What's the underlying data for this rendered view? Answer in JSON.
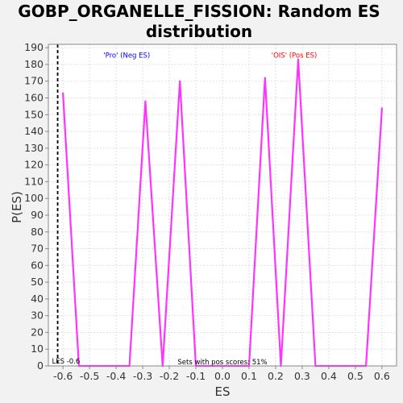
{
  "chart_data": {
    "type": "line",
    "title_lines": [
      "GOBP_ORGANELLE_FISSION: Random ES",
      "distribution"
    ],
    "xlabel": "ES",
    "ylabel": "P(ES)",
    "xlim": [
      -0.655,
      0.655
    ],
    "ylim": [
      0,
      192
    ],
    "x_ticks": [
      -0.6,
      -0.5,
      -0.4,
      -0.3,
      -0.2,
      -0.1,
      0.0,
      0.1,
      0.2,
      0.3,
      0.4,
      0.5,
      0.6
    ],
    "x_tick_labels": [
      "-0.6",
      "-0.5",
      "-0.4",
      "-0.3",
      "-0.2",
      "-0.1",
      "0.0",
      "0.1",
      "0.2",
      "0.3",
      "0.4",
      "0.5",
      "0.6"
    ],
    "y_ticks": [
      0,
      10,
      20,
      30,
      40,
      50,
      60,
      70,
      80,
      90,
      100,
      110,
      120,
      130,
      140,
      150,
      160,
      170,
      180,
      190
    ],
    "grid": true,
    "series": [
      {
        "color": "#ff33ff",
        "x": [
          -0.6,
          -0.54,
          -0.35,
          -0.29,
          -0.225,
          -0.16,
          -0.1,
          0.1,
          0.16,
          0.22,
          0.285,
          0.35,
          0.54,
          0.6
        ],
        "y": [
          163,
          0,
          0,
          158,
          0,
          170,
          0,
          0,
          172,
          0,
          183,
          0,
          0,
          154
        ]
      }
    ],
    "reference_line": {
      "x": -0.62,
      "label": "LES -0.6",
      "color": "#000000",
      "style": "dashed"
    },
    "annotations": [
      {
        "text": "'Pro' (Neg ES)",
        "x": -0.36,
        "y": 184,
        "color": "#0000ff"
      },
      {
        "text": "'OIS' (Pos ES)",
        "x": 0.27,
        "y": 184,
        "color": "#ff0000"
      },
      {
        "text": "Sets with pos scores: 51%",
        "x": 0.0,
        "y": 1,
        "color": "#000000"
      }
    ]
  }
}
